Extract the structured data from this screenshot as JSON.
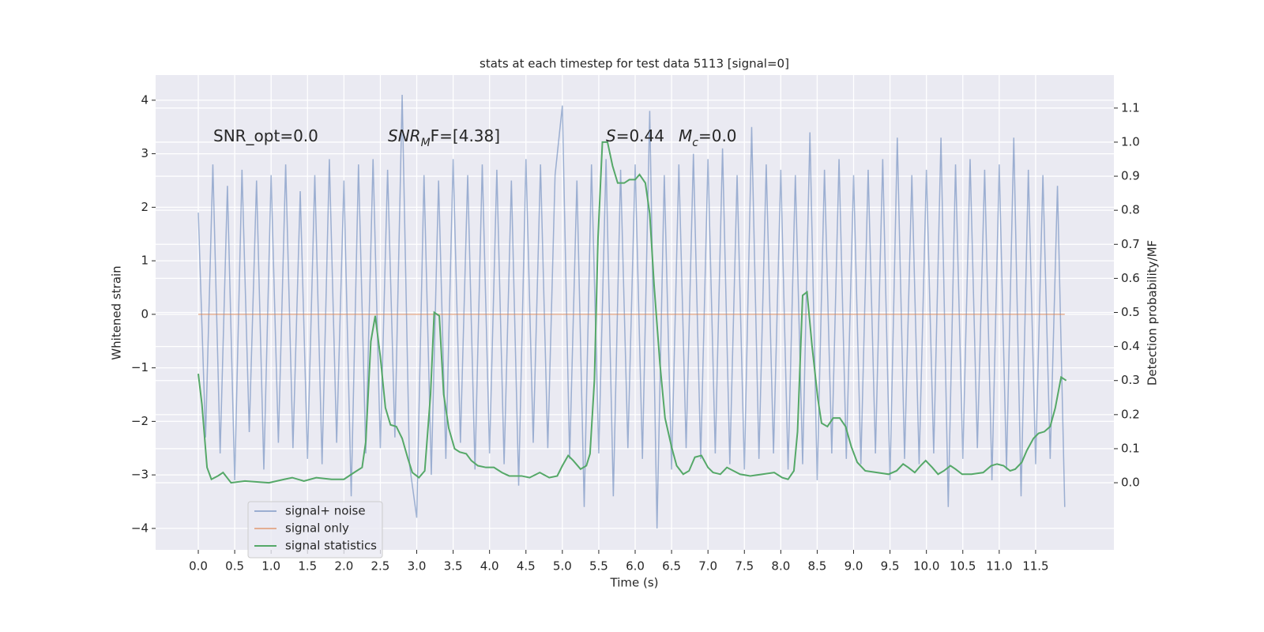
{
  "chart_data": {
    "type": "line",
    "title": "stats at each timestep for test data 5113 [signal=0]",
    "x_label": "Time (s)",
    "y_label": "Whitened strain",
    "y2_label": "Detection probability/MF",
    "xlim": [
      -0.586,
      12.575
    ],
    "ylim": [
      -4.4,
      4.47
    ],
    "y2lim": [
      -0.197,
      1.197
    ],
    "xticks": [
      {
        "value": 0,
        "label": "0.0"
      },
      0.5,
      {
        "value": 1,
        "label": "1.0"
      },
      1.5,
      {
        "value": 2,
        "label": "2.0"
      },
      2.5,
      {
        "value": 3,
        "label": "3.0"
      },
      3.5,
      {
        "value": 4,
        "label": "4.0"
      },
      4.5,
      {
        "value": 5,
        "label": "5.0"
      },
      5.5,
      {
        "value": 6,
        "label": "6.0"
      },
      6.5,
      {
        "value": 7,
        "label": "7.0"
      },
      7.5,
      {
        "value": 8,
        "label": "8.0"
      },
      8.5,
      {
        "value": 9,
        "label": "9.0"
      },
      9.5,
      {
        "value": 10,
        "label": "10.0"
      },
      10.5,
      {
        "value": 11,
        "label": "11.0"
      },
      11.5
    ],
    "yticks": [
      {
        "value": -4,
        "label": "−4"
      },
      {
        "value": -3,
        "label": "−3"
      },
      {
        "value": -2,
        "label": "−2"
      },
      {
        "value": -1,
        "label": "−1"
      },
      0,
      1,
      2,
      3,
      4
    ],
    "y2ticks": [
      {
        "value": 0,
        "label": "0.0"
      },
      0.1,
      0.2,
      0.3,
      0.4,
      0.5,
      0.6,
      0.7,
      0.8,
      0.9,
      {
        "value": 1,
        "label": "1.0"
      },
      1.1
    ],
    "grid": true,
    "legend_position": "lower left",
    "annotations": [
      {
        "text": "SNR_opt=0.0"
      },
      {
        "italic": "SNR",
        "sub": "M",
        "text": "F=[4.38]"
      },
      {
        "italic": "S",
        "text": "=0.44"
      },
      {
        "italic": "M",
        "sub": "c",
        "text": "=0.0"
      }
    ],
    "series": [
      {
        "name": "signal+ noise",
        "color": "#4c72b0",
        "opacity": 0.5,
        "x": [
          0,
          0.1,
          0.2,
          0.3,
          0.4,
          0.5,
          0.6,
          0.7,
          0.8,
          0.9,
          1,
          1.1,
          1.2,
          1.3,
          1.4,
          1.5,
          1.6,
          1.7,
          1.8,
          1.9,
          2,
          2.1,
          2.2,
          2.3,
          2.4,
          2.5,
          2.6,
          2.7,
          2.8,
          2.9,
          3,
          3.1,
          3.2,
          3.3,
          3.4,
          3.5,
          3.6,
          3.7,
          3.8,
          3.9,
          4,
          4.1,
          4.2,
          4.3,
          4.4,
          4.5,
          4.6,
          4.7,
          4.8,
          4.9,
          5,
          5.1,
          5.2,
          5.3,
          5.4,
          5.5,
          5.6,
          5.7,
          5.8,
          5.9,
          6,
          6.1,
          6.2,
          6.3,
          6.4,
          6.5,
          6.6,
          6.7,
          6.8,
          6.9,
          7,
          7.1,
          7.2,
          7.3,
          7.4,
          7.5,
          7.6,
          7.7,
          7.8,
          7.9,
          8,
          8.1,
          8.2,
          8.3,
          8.4,
          8.5,
          8.6,
          8.7,
          8.8,
          8.9,
          9,
          9.1,
          9.2,
          9.3,
          9.4,
          9.5,
          9.6,
          9.7,
          9.8,
          9.9,
          10,
          10.1,
          10.2,
          10.3,
          10.4,
          10.5,
          10.6,
          10.7,
          10.8,
          10.9,
          11,
          11.1,
          11.2,
          11.3,
          11.4,
          11.5,
          11.6,
          11.7,
          11.8,
          11.9
        ],
        "values": [
          1.9,
          -2.3,
          2.8,
          -2.6,
          2.4,
          -3.1,
          2.7,
          -2.2,
          2.5,
          -2.9,
          2.6,
          -2.4,
          2.8,
          -2.5,
          2.3,
          -2.7,
          2.6,
          -2.8,
          2.9,
          -2.4,
          2.5,
          -3.4,
          2.8,
          -2.6,
          2.9,
          -2.5,
          2.7,
          -2.3,
          4.1,
          -2.8,
          -3.8,
          2.6,
          -3.0,
          2.5,
          -2.7,
          2.9,
          -2.4,
          2.6,
          -2.9,
          2.8,
          -2.6,
          2.7,
          -2.8,
          2.5,
          -3.2,
          2.9,
          -2.4,
          2.8,
          -2.5,
          2.6,
          3.9,
          -2.7,
          2.5,
          -3.6,
          2.8,
          -2.6,
          2.9,
          -3.4,
          2.7,
          -2.5,
          2.8,
          -2.7,
          3.8,
          -4.0,
          2.6,
          -2.9,
          2.8,
          -2.5,
          3.0,
          -2.7,
          2.9,
          -2.6,
          3.1,
          -2.8,
          2.6,
          -2.9,
          3.5,
          -2.7,
          2.8,
          -2.6,
          2.7,
          -2.9,
          2.6,
          -2.8,
          3.4,
          -3.1,
          2.7,
          -2.6,
          2.9,
          -2.7,
          2.6,
          -2.8,
          2.7,
          -2.6,
          2.9,
          -3.1,
          3.3,
          -2.7,
          2.6,
          -2.8,
          2.7,
          -2.6,
          3.3,
          -3.6,
          2.8,
          -2.7,
          2.9,
          -2.5,
          2.7,
          -3.1,
          2.8,
          -2.9,
          3.3,
          -3.4,
          2.7,
          -2.8,
          2.6,
          -2.7,
          2.4,
          -3.6
        ]
      },
      {
        "name": "signal only",
        "color": "#dd8452",
        "opacity": 0.6,
        "x": [
          0,
          11.9
        ],
        "values": [
          0,
          0
        ]
      },
      {
        "name": "signal statistics",
        "color": "#55a868",
        "opacity": 1,
        "axis": "y2",
        "x": [
          0,
          0.05,
          0.12,
          0.18,
          0.27,
          0.34,
          0.45,
          0.64,
          0.97,
          1.18,
          1.29,
          1.45,
          1.62,
          1.83,
          2.0,
          2.14,
          2.25,
          2.3,
          2.37,
          2.43,
          2.5,
          2.57,
          2.64,
          2.72,
          2.8,
          2.88,
          2.94,
          3.03,
          3.11,
          3.19,
          3.24,
          3.31,
          3.37,
          3.44,
          3.52,
          3.59,
          3.68,
          3.75,
          3.84,
          3.95,
          4.06,
          4.17,
          4.27,
          4.44,
          4.55,
          4.69,
          4.82,
          4.93,
          5.0,
          5.08,
          5.15,
          5.25,
          5.33,
          5.38,
          5.44,
          5.49,
          5.55,
          5.62,
          5.69,
          5.76,
          5.85,
          5.92,
          6.0,
          6.06,
          6.14,
          6.2,
          6.26,
          6.34,
          6.41,
          6.5,
          6.57,
          6.66,
          6.74,
          6.82,
          6.91,
          7.0,
          7.07,
          7.17,
          7.26,
          7.35,
          7.44,
          7.58,
          7.75,
          7.91,
          8.02,
          8.1,
          8.18,
          8.23,
          8.3,
          8.36,
          8.43,
          8.51,
          8.56,
          8.64,
          8.72,
          8.81,
          8.89,
          8.97,
          9.05,
          9.16,
          9.32,
          9.48,
          9.59,
          9.68,
          9.75,
          9.84,
          9.92,
          9.99,
          10.08,
          10.16,
          10.24,
          10.33,
          10.4,
          10.49,
          10.62,
          10.78,
          10.89,
          10.97,
          11.06,
          11.15,
          11.22,
          11.31,
          11.38,
          11.47,
          11.54,
          11.62,
          11.7,
          11.77,
          11.85,
          11.92
        ],
        "values": [
          0.32,
          0.23,
          0.045,
          0.01,
          0.02,
          0.03,
          0.0,
          0.005,
          0.0,
          0.01,
          0.015,
          0.005,
          0.015,
          0.01,
          0.01,
          0.03,
          0.045,
          0.12,
          0.415,
          0.49,
          0.37,
          0.22,
          0.17,
          0.165,
          0.13,
          0.07,
          0.03,
          0.015,
          0.035,
          0.26,
          0.5,
          0.49,
          0.26,
          0.16,
          0.1,
          0.09,
          0.085,
          0.065,
          0.05,
          0.045,
          0.045,
          0.03,
          0.02,
          0.02,
          0.015,
          0.03,
          0.015,
          0.02,
          0.05,
          0.08,
          0.065,
          0.04,
          0.05,
          0.085,
          0.3,
          0.72,
          1.0,
          1.0,
          0.93,
          0.88,
          0.88,
          0.89,
          0.89,
          0.905,
          0.88,
          0.79,
          0.58,
          0.35,
          0.19,
          0.105,
          0.05,
          0.025,
          0.035,
          0.075,
          0.08,
          0.045,
          0.03,
          0.025,
          0.045,
          0.035,
          0.025,
          0.02,
          0.025,
          0.03,
          0.015,
          0.01,
          0.035,
          0.15,
          0.55,
          0.56,
          0.4,
          0.245,
          0.175,
          0.165,
          0.19,
          0.19,
          0.165,
          0.105,
          0.06,
          0.035,
          0.03,
          0.025,
          0.035,
          0.055,
          0.045,
          0.03,
          0.05,
          0.065,
          0.045,
          0.025,
          0.035,
          0.05,
          0.04,
          0.025,
          0.025,
          0.03,
          0.05,
          0.055,
          0.05,
          0.035,
          0.04,
          0.06,
          0.095,
          0.13,
          0.145,
          0.15,
          0.165,
          0.22,
          0.31,
          0.3
        ]
      }
    ]
  }
}
